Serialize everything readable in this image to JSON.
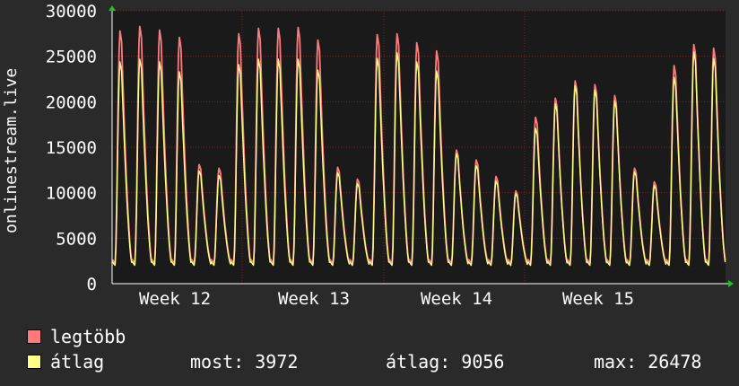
{
  "chart_data": {
    "type": "line",
    "ylabel": "onlinestream.live",
    "ylim": [
      0,
      30000
    ],
    "yticks": [
      0,
      5000,
      10000,
      15000,
      20000,
      25000,
      30000
    ],
    "xticks": [
      "Week 12",
      "Week 13",
      "Week 14",
      "Week 15"
    ],
    "grid": true,
    "legend_position": "bottom-left",
    "colors": {
      "background": "#2a2a2a",
      "plot": "#1a1a1a",
      "grid": "#7a2020",
      "max": "#ff7b7b",
      "avg": "#ffff88"
    },
    "series": [
      {
        "name": "legtöbb",
        "key": "max",
        "daily_peaks": [
          27800,
          28300,
          27900,
          27100,
          13100,
          12700,
          27500,
          28100,
          28100,
          28200,
          26800,
          12800,
          11500,
          27400,
          27500,
          26500,
          25600,
          14700,
          13600,
          11800,
          10200,
          18300,
          20400,
          22300,
          21900,
          20700,
          12700,
          11200,
          24000,
          26300,
          25900
        ],
        "daily_min": 2200
      },
      {
        "name": "átlag",
        "key": "avg",
        "daily_peaks": [
          24400,
          24700,
          24400,
          23300,
          12400,
          11900,
          24100,
          24700,
          24700,
          24700,
          23500,
          12200,
          11000,
          24800,
          25400,
          24400,
          23400,
          14300,
          13000,
          11300,
          9900,
          17100,
          19800,
          21800,
          21300,
          20100,
          12300,
          10800,
          22700,
          25500,
          24800
        ],
        "daily_min": 2000
      }
    ]
  },
  "legend": {
    "max_label": "legtöbb",
    "avg_label": "átlag"
  },
  "stats": {
    "now": "most: 3972",
    "avg": "átlag: 9056",
    "max": "max: 26478"
  }
}
